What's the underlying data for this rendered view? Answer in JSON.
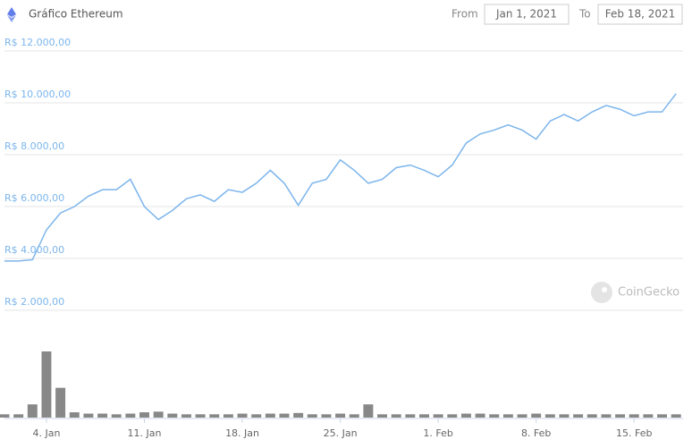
{
  "header": {
    "title": "Gráfico Ethereum",
    "from_label": "From",
    "from_value": "Jan 1, 2021",
    "to_label": "To",
    "to_value": "Feb 18, 2021"
  },
  "chart_data": {
    "type": "line",
    "watermark": "CoinGecko",
    "x": [
      0,
      1,
      2,
      3,
      4,
      5,
      6,
      7,
      8,
      9,
      10,
      11,
      12,
      13,
      14,
      15,
      16,
      17,
      18,
      19,
      20,
      21,
      22,
      23,
      24,
      25,
      26,
      27,
      28,
      29,
      30,
      31,
      32,
      33,
      34,
      35,
      36,
      37,
      38,
      39,
      40,
      41,
      42,
      43,
      44,
      45,
      46,
      47,
      48
    ],
    "xlim": [
      0,
      48.5
    ],
    "xticks": [
      {
        "value": 3,
        "label": "4. Jan"
      },
      {
        "value": 10,
        "label": "11. Jan"
      },
      {
        "value": 17,
        "label": "18. Jan"
      },
      {
        "value": 24,
        "label": "25. Jan"
      },
      {
        "value": 31,
        "label": "1. Feb"
      },
      {
        "value": 38,
        "label": "8. Feb"
      },
      {
        "value": 45,
        "label": "15. Feb"
      }
    ],
    "ylim": [
      0,
      12000
    ],
    "yticks": [
      {
        "value": 2000,
        "label": "R$ 2.000,00"
      },
      {
        "value": 4000,
        "label": "R$ 4.000,00"
      },
      {
        "value": 6000,
        "label": "R$ 6.000,00"
      },
      {
        "value": 8000,
        "label": "R$ 8.000,00"
      },
      {
        "value": 10000,
        "label": "R$ 10.000,00"
      },
      {
        "value": 12000,
        "label": "R$ 12.000,00"
      }
    ],
    "y2lim": [
      0,
      100
    ],
    "grid": true,
    "series": [
      {
        "type": "line",
        "color": "#7cb5ec",
        "values": [
          3900,
          3900,
          3950,
          5100,
          5750,
          6000,
          6400,
          6650,
          6650,
          7050,
          6000,
          5500,
          5850,
          6300,
          6450,
          6200,
          6650,
          6550,
          6900,
          7400,
          6900,
          6050,
          6900,
          7050,
          7800,
          7400,
          6900,
          7050,
          7500,
          7600,
          7400,
          7150,
          7600,
          8450,
          8800,
          8950,
          9150,
          8950,
          8600,
          9300,
          9550,
          9300,
          9650,
          9900,
          9750,
          9500,
          9650,
          9650,
          10350
        ]
      },
      {
        "type": "bar",
        "axis": "y2",
        "color": "#888888",
        "values": [
          5,
          5,
          20,
          100,
          45,
          8,
          6,
          6,
          5,
          6,
          8,
          9,
          6,
          5,
          5,
          5,
          5,
          6,
          5,
          6,
          6,
          7,
          5,
          5,
          6,
          5,
          20,
          5,
          5,
          5,
          5,
          5,
          5,
          6,
          6,
          5,
          5,
          5,
          6,
          5,
          5,
          5,
          5,
          5,
          5,
          5,
          5,
          5,
          5
        ]
      }
    ]
  }
}
